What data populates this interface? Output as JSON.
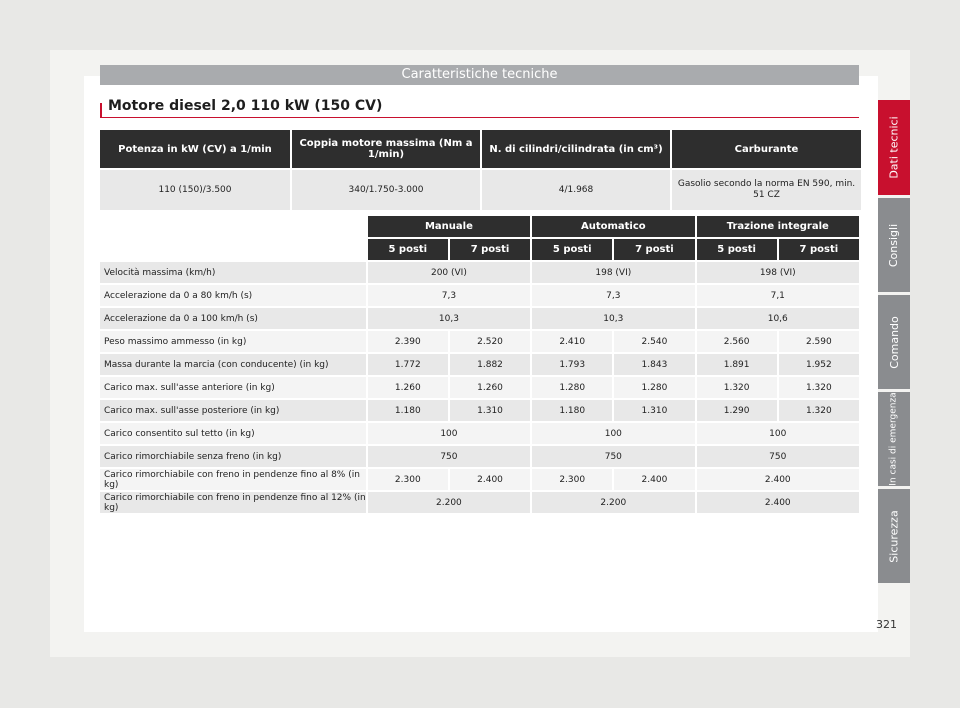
{
  "header": {
    "title": "Caratteristiche tecniche"
  },
  "section": {
    "title": "Motore diesel 2,0 110 kW (150 CV)"
  },
  "engine_table": {
    "headers": [
      "Potenza in kW (CV) a 1/min",
      "Coppia motore massima (Nm a 1/min)",
      "N. di cilindri/cilindrata (in cm³)",
      "Carburante"
    ],
    "row": [
      "110 (150)/3.500",
      "340/1.750-3.000",
      "4/1.968",
      "Gasolio secondo la norma EN 590, min. 51 CZ"
    ]
  },
  "spec_table": {
    "groups": [
      "Manuale",
      "Automatico",
      "Trazione integrale"
    ],
    "seats": [
      "5 posti",
      "7 posti",
      "5 posti",
      "7 posti",
      "5 posti",
      "7 posti"
    ],
    "rows": [
      {
        "label": "Velocità massima (km/h)",
        "values": [
          "200 (VI)",
          "198 (VI)",
          "198 (VI)"
        ]
      },
      {
        "label": "Accelerazione da 0 a 80 km/h (s)",
        "values": [
          "7,3",
          "7,3",
          "7,1"
        ]
      },
      {
        "label": "Accelerazione da 0 a 100 km/h (s)",
        "values": [
          "10,3",
          "10,3",
          "10,6"
        ]
      },
      {
        "label": "Peso massimo ammesso (in kg)",
        "values": [
          "2.390",
          "2.520",
          "2.410",
          "2.540",
          "2.560",
          "2.590"
        ]
      },
      {
        "label": "Massa durante la marcia (con conducente) (in kg)",
        "values": [
          "1.772",
          "1.882",
          "1.793",
          "1.843",
          "1.891",
          "1.952"
        ]
      },
      {
        "label": "Carico max. sull'asse anteriore (in kg)",
        "values": [
          "1.260",
          "1.260",
          "1.280",
          "1.280",
          "1.320",
          "1.320"
        ]
      },
      {
        "label": "Carico max. sull'asse posteriore (in kg)",
        "values": [
          "1.180",
          "1.310",
          "1.180",
          "1.310",
          "1.290",
          "1.320"
        ]
      },
      {
        "label": "Carico consentito sul tetto (in kg)",
        "values": [
          "100",
          "100",
          "100"
        ]
      },
      {
        "label": "Carico rimorchiabile senza freno (in kg)",
        "values": [
          "750",
          "750",
          "750"
        ]
      },
      {
        "label": "Carico rimorchiabile con freno in pendenze fino al 8% (in kg)",
        "values": [
          "2.300",
          "2.400",
          "2.300",
          "2.400",
          "2.400"
        ]
      },
      {
        "label": "Carico rimorchiabile con freno in pendenze fino al 12% (in kg)",
        "values": [
          "2.200",
          "2.200",
          "2.400"
        ]
      }
    ]
  },
  "side_tabs": [
    "Dati tecnici",
    "Consigli",
    "Comando",
    "In casi di emergenza",
    "Sicurezza"
  ],
  "page_number": "321",
  "colors": {
    "accent": "#c8102e",
    "tab_grey": "#8a8c8f",
    "header_grey": "#a9abae",
    "dark": "#2e2e2e"
  }
}
